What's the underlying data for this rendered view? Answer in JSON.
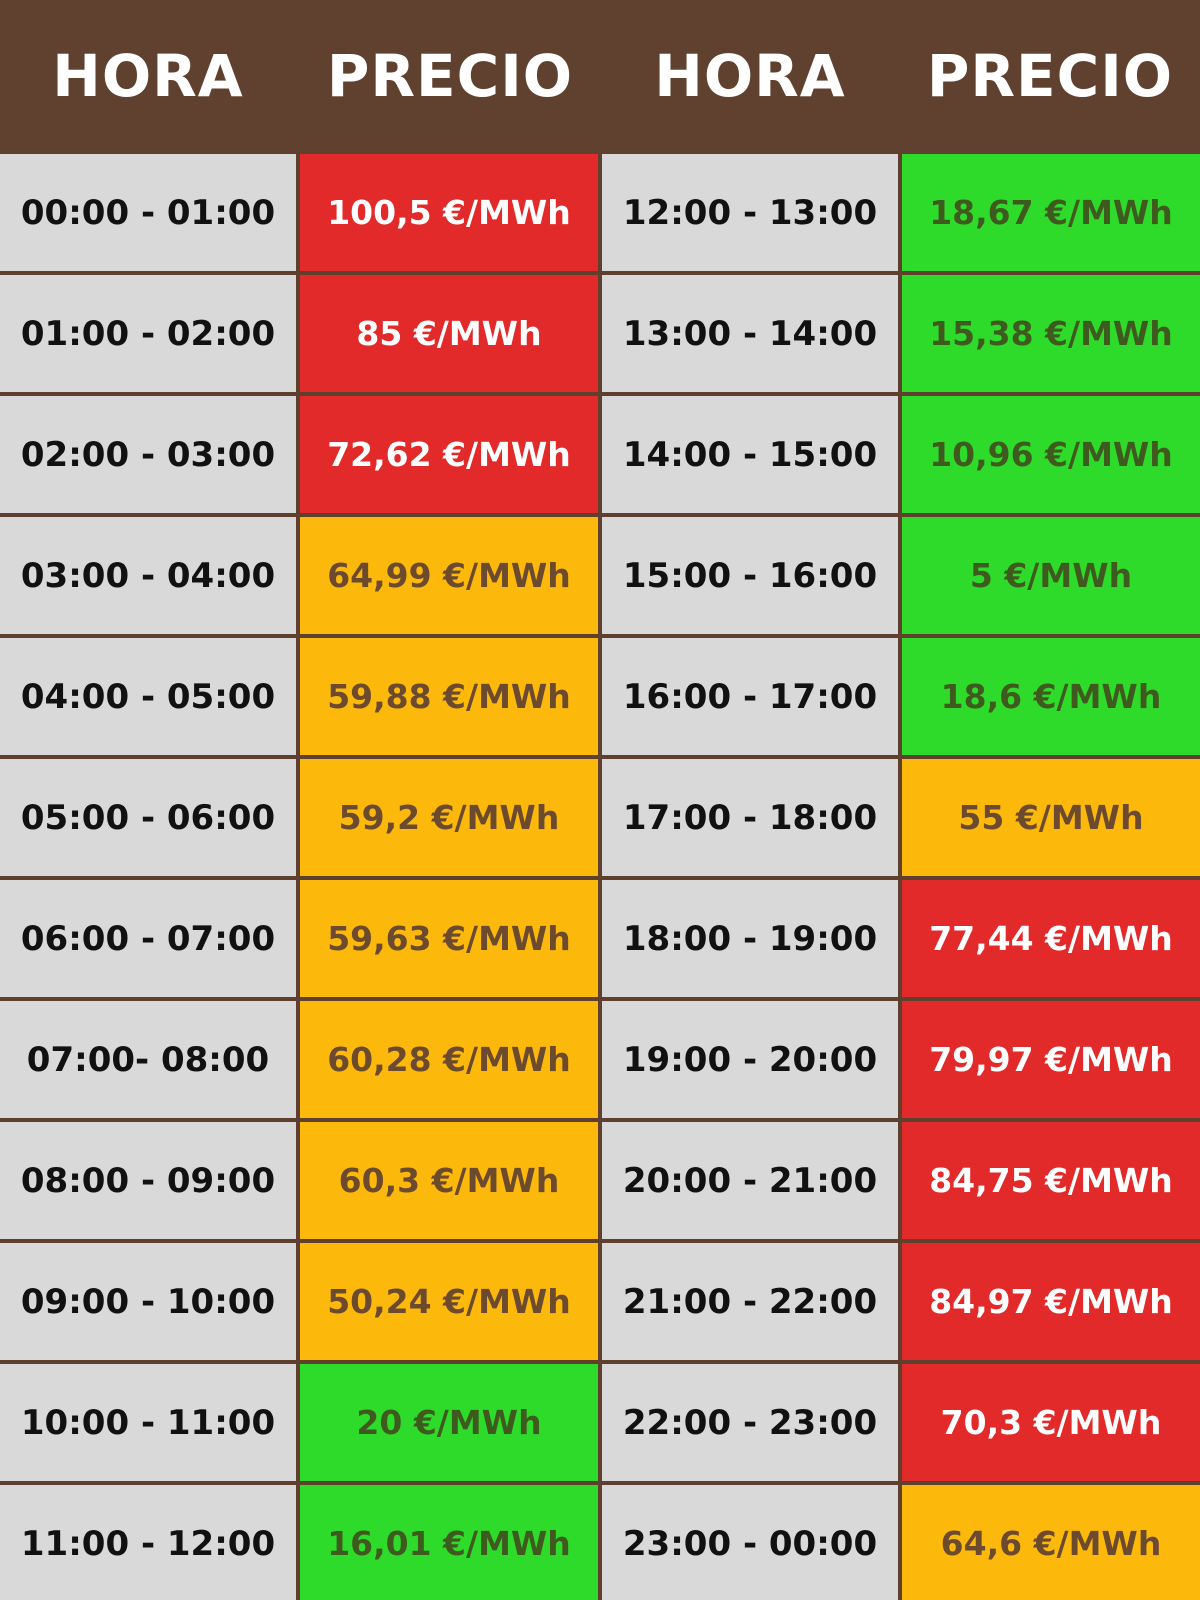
{
  "header": {
    "col1": "HORA",
    "col2": "PRECIO",
    "col3": "HORA",
    "col4": "PRECIO"
  },
  "colors": {
    "header_bg": "#60412f",
    "time_bg": "#d9d9da",
    "high": "#e22a2a",
    "mid": "#fdb90b",
    "low": "#2fdb2a"
  },
  "chart_data": {
    "type": "table",
    "unit": "€/MWh",
    "columns": [
      "HORA",
      "PRECIO",
      "HORA",
      "PRECIO"
    ],
    "left": [
      {
        "hora": "00:00 - 01:00",
        "precio": "100,5 €/MWh",
        "value": 100.5,
        "level": "high"
      },
      {
        "hora": "01:00 - 02:00",
        "precio": "85 €/MWh",
        "value": 85,
        "level": "high"
      },
      {
        "hora": "02:00 - 03:00",
        "precio": "72,62 €/MWh",
        "value": 72.62,
        "level": "high"
      },
      {
        "hora": "03:00 - 04:00",
        "precio": "64,99 €/MWh",
        "value": 64.99,
        "level": "mid"
      },
      {
        "hora": "04:00 - 05:00",
        "precio": "59,88 €/MWh",
        "value": 59.88,
        "level": "mid"
      },
      {
        "hora": "05:00 - 06:00",
        "precio": "59,2 €/MWh",
        "value": 59.2,
        "level": "mid"
      },
      {
        "hora": "06:00 - 07:00",
        "precio": "59,63 €/MWh",
        "value": 59.63,
        "level": "mid"
      },
      {
        "hora": "07:00- 08:00",
        "precio": "60,28 €/MWh",
        "value": 60.28,
        "level": "mid"
      },
      {
        "hora": "08:00 - 09:00",
        "precio": "60,3 €/MWh",
        "value": 60.3,
        "level": "mid"
      },
      {
        "hora": "09:00 - 10:00",
        "precio": "50,24 €/MWh",
        "value": 50.24,
        "level": "mid"
      },
      {
        "hora": "10:00 - 11:00",
        "precio": "20 €/MWh",
        "value": 20,
        "level": "low"
      },
      {
        "hora": "11:00 - 12:00",
        "precio": "16,01 €/MWh",
        "value": 16.01,
        "level": "low"
      }
    ],
    "right": [
      {
        "hora": "12:00 - 13:00",
        "precio": "18,67 €/MWh",
        "value": 18.67,
        "level": "low"
      },
      {
        "hora": "13:00 - 14:00",
        "precio": "15,38 €/MWh",
        "value": 15.38,
        "level": "low"
      },
      {
        "hora": "14:00 - 15:00",
        "precio": "10,96 €/MWh",
        "value": 10.96,
        "level": "low"
      },
      {
        "hora": "15:00 - 16:00",
        "precio": "5 €/MWh",
        "value": 5,
        "level": "low"
      },
      {
        "hora": "16:00 - 17:00",
        "precio": "18,6 €/MWh",
        "value": 18.6,
        "level": "low"
      },
      {
        "hora": "17:00 - 18:00",
        "precio": "55 €/MWh",
        "value": 55,
        "level": "mid"
      },
      {
        "hora": "18:00 - 19:00",
        "precio": "77,44 €/MWh",
        "value": 77.44,
        "level": "high"
      },
      {
        "hora": "19:00 - 20:00",
        "precio": "79,97 €/MWh",
        "value": 79.97,
        "level": "high"
      },
      {
        "hora": "20:00 - 21:00",
        "precio": "84,75 €/MWh",
        "value": 84.75,
        "level": "high"
      },
      {
        "hora": "21:00 - 22:00",
        "precio": "84,97 €/MWh",
        "value": 84.97,
        "level": "high"
      },
      {
        "hora": "22:00 - 23:00",
        "precio": "70,3 €/MWh",
        "value": 70.3,
        "level": "high"
      },
      {
        "hora": "23:00 - 00:00",
        "precio": "64,6 €/MWh",
        "value": 64.6,
        "level": "mid"
      }
    ]
  }
}
